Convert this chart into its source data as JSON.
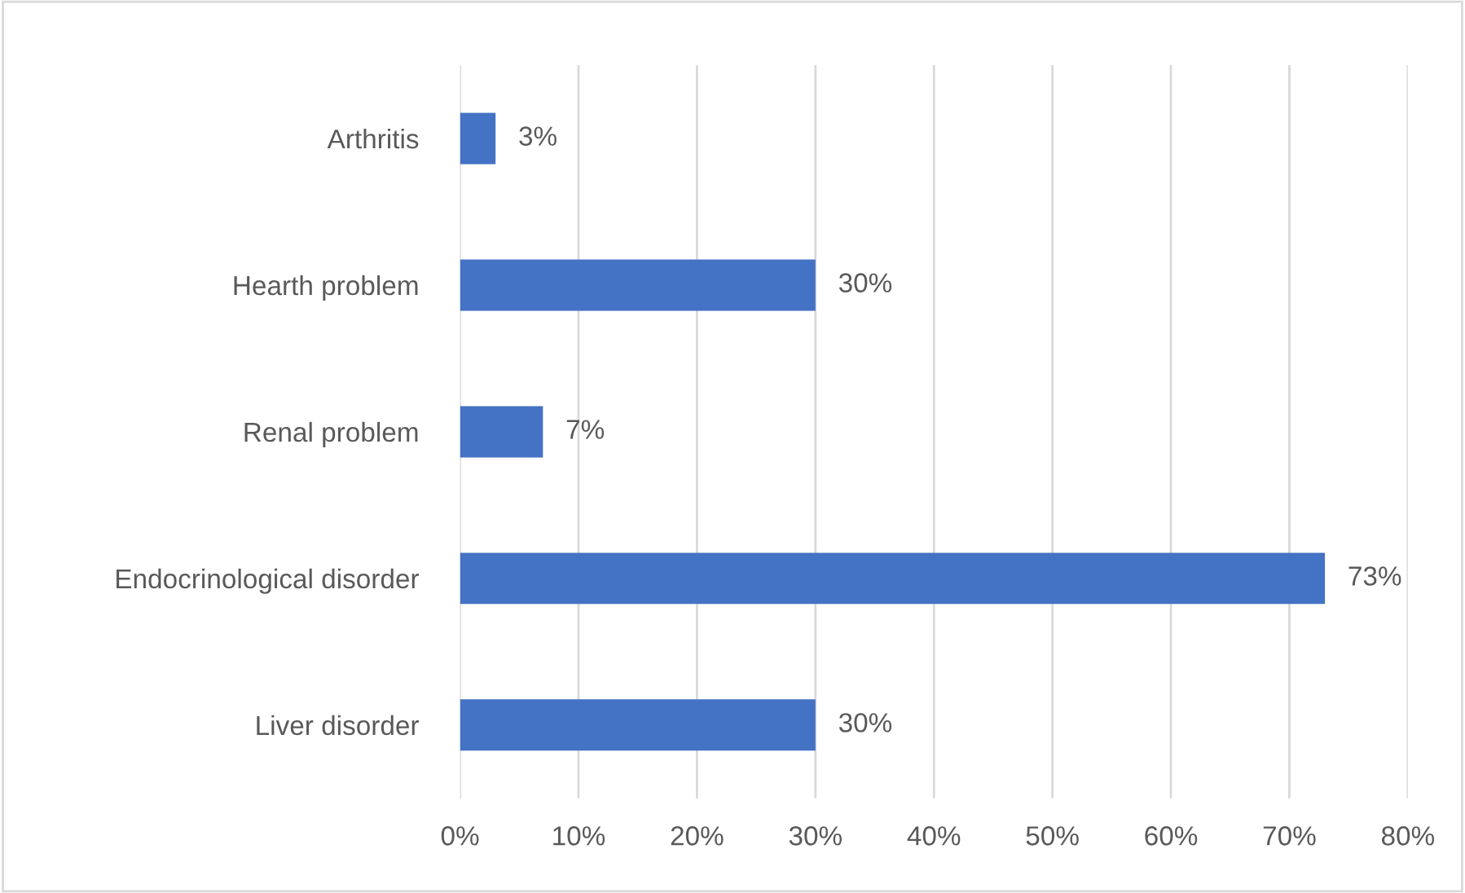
{
  "chart_data": {
    "type": "bar",
    "orientation": "horizontal",
    "categories": [
      "Arthritis",
      "Hearth problem",
      "Renal problem",
      "Endocrinological disorder",
      "Liver disorder"
    ],
    "values": [
      3,
      30,
      7,
      73,
      30
    ],
    "value_labels": [
      "3%",
      "30%",
      "7%",
      "73%",
      "30%"
    ],
    "color": "#4472c4",
    "xlim": [
      0,
      80
    ],
    "xticks": [
      {
        "value": 0,
        "label": "0%"
      },
      {
        "value": 10,
        "label": "10%"
      },
      {
        "value": 20,
        "label": "20%"
      },
      {
        "value": 30,
        "label": "30%"
      },
      {
        "value": 40,
        "label": "40%"
      },
      {
        "value": 50,
        "label": "50%"
      },
      {
        "value": 60,
        "label": "60%"
      },
      {
        "value": 70,
        "label": "70%"
      },
      {
        "value": 80,
        "label": "80%"
      }
    ],
    "grid": "x",
    "legend": false
  }
}
